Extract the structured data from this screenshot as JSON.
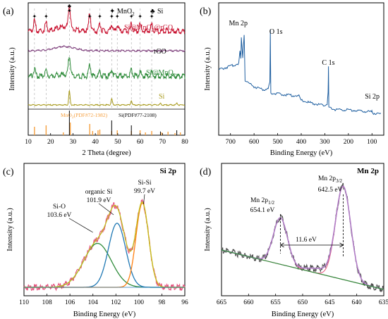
{
  "chart_data": [
    {
      "panel": "(a)",
      "type": "line",
      "xlabel": "2 Theta (degree)",
      "ylabel": "Intensity (a.u.)",
      "xlim": [
        10,
        80
      ],
      "xticks": [
        10,
        20,
        30,
        40,
        50,
        60,
        70,
        80
      ],
      "legend": {
        "mno2_symbol": "✦",
        "mno2_label": "MnO",
        "mno2_sub": "2",
        "si_symbol": "♣",
        "si_label": "Si"
      },
      "series": [
        {
          "name": "Si@MnO2@rGO",
          "label_main": "Si@MnO",
          "label_sub": "2",
          "label_tail": "@rGO",
          "color": "#c8102e",
          "peaks": [
            [
              12.8,
              0.45
            ],
            [
              18.0,
              0.35
            ],
            [
              28.4,
              1.0
            ],
            [
              37.5,
              0.75
            ],
            [
              42.0,
              0.3
            ],
            [
              47.3,
              0.28
            ],
            [
              49.8,
              0.22
            ],
            [
              56.1,
              0.3
            ],
            [
              60.0,
              0.28
            ],
            [
              65.2,
              0.25
            ]
          ]
        },
        {
          "name": "rGO",
          "label_main": "rGO",
          "label_sub": "",
          "label_tail": "",
          "color": "#7a3a78",
          "peaks": [
            [
              26.0,
              0.5
            ]
          ]
        },
        {
          "name": "Si@MnO2",
          "label_main": "Si@MnO",
          "label_sub": "2",
          "label_tail": "",
          "color": "#2e8b3a",
          "peaks": [
            [
              12.8,
              0.3
            ],
            [
              18.0,
              0.25
            ],
            [
              28.4,
              0.9
            ],
            [
              37.5,
              0.55
            ],
            [
              42.0,
              0.2
            ],
            [
              47.3,
              0.3
            ],
            [
              56.1,
              0.28
            ],
            [
              60.0,
              0.22
            ],
            [
              65.2,
              0.18
            ]
          ]
        },
        {
          "name": "Si",
          "label_main": "Si",
          "label_sub": "",
          "label_tail": "",
          "color": "#a89a1c",
          "peaks": [
            [
              28.4,
              1.0
            ],
            [
              47.3,
              0.45
            ],
            [
              56.1,
              0.3
            ],
            [
              69.1,
              0.1
            ],
            [
              76.4,
              0.12
            ]
          ]
        }
      ],
      "markers": {
        "mno2": [
          12.8,
          18.0,
          28.4,
          37.5,
          42.0,
          47.3,
          49.8,
          56.1,
          60.0,
          65.2
        ],
        "si": [
          28.4,
          47.3,
          56.1
        ]
      },
      "reference": {
        "mno2_label": "MnO",
        "mno2_sub": "2",
        "mno2_tail": "(PDF#72-1982)",
        "mno2_color": "#f5a040",
        "si_label": "Si(PDF#77-2108)",
        "si_color": "#000000",
        "mno2_lines": [
          [
            12.8,
            0.6
          ],
          [
            18.0,
            0.7
          ],
          [
            25.7,
            0.2
          ],
          [
            28.8,
            0.9
          ],
          [
            37.5,
            0.8
          ],
          [
            38.8,
            0.3
          ],
          [
            41.2,
            0.35
          ],
          [
            42.0,
            0.4
          ],
          [
            47.3,
            0.3
          ],
          [
            49.8,
            0.35
          ],
          [
            56.1,
            0.3
          ],
          [
            60.0,
            0.35
          ],
          [
            62.4,
            0.2
          ],
          [
            65.2,
            0.3
          ],
          [
            69.7,
            0.2
          ],
          [
            72.5,
            0.25
          ],
          [
            75.6,
            0.15
          ],
          [
            78.0,
            0.2
          ]
        ],
        "si_lines": [
          [
            28.4,
            1.0
          ],
          [
            47.3,
            0.6
          ],
          [
            56.1,
            0.4
          ],
          [
            69.1,
            0.15
          ],
          [
            76.4,
            0.2
          ]
        ]
      }
    },
    {
      "panel": "(b)",
      "type": "line",
      "xlabel": "Binding Energy (eV)",
      "ylabel": "Intensity (a.u.)",
      "xlim": [
        750,
        50
      ],
      "xticks": [
        700,
        600,
        500,
        400,
        300,
        200,
        100
      ],
      "color": "#1f5fa0",
      "points": [
        [
          750,
          0.62
        ],
        [
          720,
          0.64
        ],
        [
          690,
          0.66
        ],
        [
          665,
          0.68
        ],
        [
          660,
          0.8
        ],
        [
          656,
          0.72
        ],
        [
          654,
          0.92
        ],
        [
          648,
          0.74
        ],
        [
          642,
          0.96
        ],
        [
          638,
          0.52
        ],
        [
          600,
          0.46
        ],
        [
          560,
          0.43
        ],
        [
          540,
          0.44
        ],
        [
          533,
          0.5
        ],
        [
          531,
          1.0
        ],
        [
          529,
          0.4
        ],
        [
          500,
          0.39
        ],
        [
          450,
          0.38
        ],
        [
          410,
          0.37
        ],
        [
          400,
          0.33
        ],
        [
          350,
          0.3
        ],
        [
          300,
          0.28
        ],
        [
          290,
          0.3
        ],
        [
          286,
          0.4
        ],
        [
          284.5,
          0.65
        ],
        [
          283,
          0.26
        ],
        [
          250,
          0.24
        ],
        [
          200,
          0.24
        ],
        [
          150,
          0.23
        ],
        [
          102,
          0.22
        ],
        [
          99,
          0.23
        ],
        [
          96,
          0.21
        ],
        [
          60,
          0.2
        ]
      ],
      "annotations": [
        {
          "text": "Mn 2p",
          "x": 655
        },
        {
          "text": "O 1s",
          "x": 531
        },
        {
          "text": "C 1s",
          "x": 285
        },
        {
          "text": "Si 2p",
          "x": 99
        }
      ]
    },
    {
      "panel": "(c)",
      "title": "Si 2p",
      "type": "line",
      "xlabel": "Binding Energy (eV)",
      "ylabel": "Intensity (a.u.)",
      "xlim": [
        110,
        96
      ],
      "xticks": [
        110,
        108,
        106,
        104,
        102,
        100,
        98,
        96
      ],
      "components": [
        {
          "name": "Si-O",
          "center": 103.6,
          "height": 0.48,
          "width": 1.2,
          "color": "#2e8b3a"
        },
        {
          "name": "organic Si",
          "center": 101.9,
          "height": 0.7,
          "width": 0.75,
          "color": "#1f78b4"
        },
        {
          "name": "Si-Si",
          "center": 99.7,
          "height": 0.92,
          "width": 0.55,
          "color": "#ff7f0e"
        }
      ],
      "envelope_color": "#c0c020",
      "raw_color": "#e75480",
      "annotations": [
        {
          "label": "Si-O",
          "value": "103.6 eV"
        },
        {
          "label": "organic Si",
          "value": "101.9 eV"
        },
        {
          "label": "Si-Si",
          "value": "99.7 eV"
        }
      ]
    },
    {
      "panel": "(d)",
      "title": "Mn 2p",
      "type": "line",
      "xlabel": "Binding Energy (eV)",
      "ylabel": "Intensity (a.u.)",
      "xlim": [
        665,
        635
      ],
      "xticks": [
        665,
        660,
        655,
        650,
        645,
        640,
        635
      ],
      "components": [
        {
          "name": "Mn 2p1/2",
          "center": 654.1,
          "height": 0.4,
          "width": 1.3
        },
        {
          "name": "Mn 2p3/2",
          "center": 642.5,
          "height": 0.8,
          "width": 1.4
        }
      ],
      "fit_color": "#b07cc6",
      "background_color": "#2e8b3a",
      "raw_color": "#444444",
      "splitting": "11.6 eV",
      "annotations": [
        {
          "label_main": "Mn 2p",
          "label_sub": "1/2",
          "value": "654.1 eV"
        },
        {
          "label_main": "Mn 2p",
          "label_sub": "3/2",
          "value": "642.5 eV"
        }
      ]
    }
  ]
}
